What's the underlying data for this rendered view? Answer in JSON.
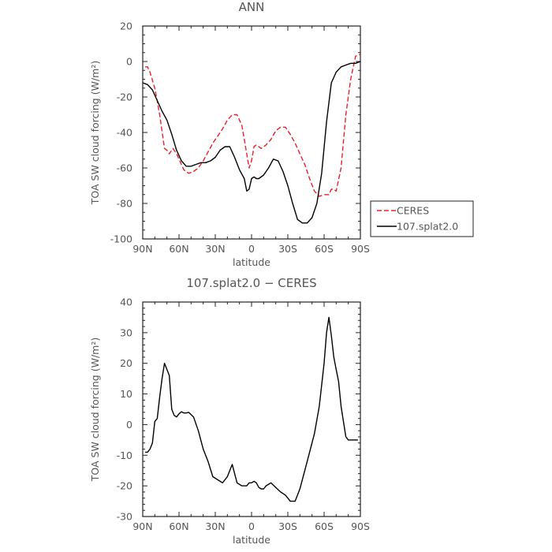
{
  "chart_data": [
    {
      "type": "line",
      "title": "ANN",
      "xlabel": "latitude",
      "ylabel": "TOA SW cloud forcing (W/m²)",
      "x_tick_labels": [
        "90N",
        "60N",
        "30N",
        "0",
        "30S",
        "60S",
        "90S"
      ],
      "x_ticks": [
        90,
        60,
        30,
        0,
        -30,
        -60,
        -90
      ],
      "xlim": [
        90,
        -90
      ],
      "ylim": [
        -100,
        20
      ],
      "y_ticks": [
        20,
        0,
        -20,
        -40,
        -60,
        -80,
        -100
      ],
      "legend_position": "right",
      "series": [
        {
          "name": "CERES",
          "color": "#e8202a",
          "dash": true,
          "x": [
            88,
            86,
            84,
            80,
            76,
            72,
            70,
            68,
            65,
            62,
            60,
            56,
            52,
            48,
            44,
            40,
            36,
            32,
            28,
            24,
            20,
            16,
            12,
            8,
            4,
            2,
            0,
            -2,
            -4,
            -8,
            -12,
            -16,
            -20,
            -24,
            -28,
            -32,
            -36,
            -40,
            -44,
            -48,
            -52,
            -56,
            -60,
            -64,
            -66,
            -68,
            -70,
            -74,
            -78,
            -82,
            -86,
            -90
          ],
          "y": [
            -3,
            -3,
            -6,
            -15,
            -30,
            -49,
            -50,
            -52,
            -49,
            -52,
            -55,
            -61,
            -63,
            -62,
            -60,
            -56,
            -51,
            -46,
            -42,
            -38,
            -33,
            -30,
            -30,
            -36,
            -52,
            -60,
            -56,
            -48,
            -47,
            -49,
            -47,
            -44,
            -39,
            -37,
            -37,
            -41,
            -46,
            -52,
            -58,
            -66,
            -73,
            -76,
            -75,
            -75,
            -72,
            -72,
            -73,
            -60,
            -30,
            -10,
            3,
            4
          ]
        },
        {
          "name": "107.splat2.0",
          "color": "#000000",
          "dash": false,
          "x": [
            90,
            86,
            82,
            78,
            74,
            70,
            66,
            62,
            58,
            54,
            50,
            46,
            42,
            38,
            34,
            30,
            26,
            22,
            18,
            14,
            10,
            6,
            4,
            2,
            0,
            -2,
            -4,
            -6,
            -10,
            -14,
            -18,
            -22,
            -26,
            -30,
            -34,
            -38,
            -42,
            -46,
            -50,
            -54,
            -58,
            -62,
            -66,
            -70,
            -74,
            -78,
            -82,
            -86,
            -90
          ],
          "y": [
            -12,
            -13,
            -16,
            -22,
            -28,
            -33,
            -41,
            -50,
            -56,
            -59,
            -59,
            -58,
            -57,
            -57,
            -56,
            -54,
            -50,
            -48,
            -48,
            -54,
            -61,
            -66,
            -73,
            -72,
            -66,
            -65,
            -66,
            -66,
            -64,
            -60,
            -55,
            -56,
            -62,
            -70,
            -80,
            -89,
            -91,
            -91,
            -88,
            -80,
            -63,
            -34,
            -12,
            -6,
            -3,
            -2,
            -1,
            -1,
            0
          ]
        }
      ]
    },
    {
      "type": "line",
      "title": "107.splat2.0 − CERES",
      "xlabel": "latitude",
      "ylabel": "TOA SW cloud forcing (W/m²)",
      "x_tick_labels": [
        "90N",
        "60N",
        "30N",
        "0",
        "30S",
        "60S",
        "90S"
      ],
      "x_ticks": [
        90,
        60,
        30,
        0,
        -30,
        -60,
        -90
      ],
      "xlim": [
        90,
        -90
      ],
      "ylim": [
        -30,
        40
      ],
      "y_ticks": [
        40,
        30,
        20,
        10,
        0,
        -10,
        -20,
        -30
      ],
      "series": [
        {
          "color": "#000000",
          "dash": false,
          "x": [
            88,
            86,
            84,
            82,
            80,
            78,
            76,
            74,
            72,
            70,
            68,
            66,
            64,
            62,
            60,
            58,
            56,
            54,
            52,
            48,
            44,
            40,
            36,
            32,
            28,
            24,
            20,
            16,
            12,
            8,
            4,
            2,
            0,
            -2,
            -4,
            -6,
            -8,
            -10,
            -12,
            -16,
            -20,
            -24,
            -28,
            -32,
            -36,
            -38,
            -40,
            -44,
            -48,
            -52,
            -56,
            -60,
            -62,
            -64,
            -66,
            -68,
            -70,
            -72,
            -74,
            -76,
            -78,
            -80,
            -84,
            -88
          ],
          "y": [
            -9,
            -9,
            -8,
            -6,
            1,
            2,
            9,
            15,
            20,
            18,
            16,
            5,
            3,
            2.5,
            3.5,
            4.2,
            3.8,
            3.8,
            4,
            2.5,
            -2,
            -8,
            -12,
            -17,
            -18,
            -19,
            -17,
            -13,
            -19,
            -20,
            -20,
            -19,
            -19,
            -18.5,
            -19,
            -20.5,
            -21,
            -21,
            -20,
            -19,
            -20.5,
            -22,
            -23,
            -25,
            -25,
            -23,
            -21,
            -15,
            -9,
            -3,
            6,
            20,
            30,
            35,
            29,
            22,
            18,
            14,
            6,
            1,
            -4,
            -5,
            -5,
            -5
          ]
        }
      ]
    }
  ]
}
